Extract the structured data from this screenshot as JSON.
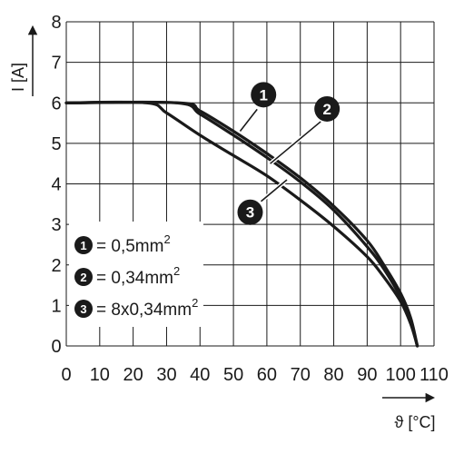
{
  "chart_data": {
    "type": "line",
    "xlabel": "ϑ [°C]",
    "ylabel": "I [A]",
    "xlim": [
      0,
      110
    ],
    "ylim": [
      0,
      8
    ],
    "x_ticks": [
      "0",
      "10",
      "20",
      "30",
      "40",
      "50",
      "60",
      "70",
      "80",
      "90",
      "100",
      "110"
    ],
    "y_ticks": [
      "0",
      "1",
      "2",
      "3",
      "4",
      "5",
      "6",
      "7",
      "8"
    ],
    "grid": true,
    "series": [
      {
        "name": "1",
        "x": [
          0,
          34,
          40,
          50,
          60,
          70,
          80,
          90,
          95,
          100,
          103,
          105
        ],
        "y": [
          6,
          6,
          5.8,
          5.3,
          4.75,
          4.15,
          3.45,
          2.6,
          2.0,
          1.3,
          0.7,
          0
        ]
      },
      {
        "name": "2",
        "x": [
          0,
          33,
          40,
          50,
          60,
          70,
          80,
          90,
          95,
          100,
          103,
          105
        ],
        "y": [
          6,
          6,
          5.72,
          5.2,
          4.65,
          4.05,
          3.35,
          2.45,
          1.9,
          1.2,
          0.6,
          0
        ]
      },
      {
        "name": "3",
        "x": [
          0,
          24,
          30,
          40,
          50,
          60,
          70,
          80,
          90,
          95,
          100,
          103,
          105
        ],
        "y": [
          6,
          6,
          5.75,
          5.2,
          4.7,
          4.2,
          3.6,
          2.95,
          2.2,
          1.7,
          1.1,
          0.55,
          0
        ]
      }
    ],
    "markers": [
      {
        "label": "1",
        "x": 59,
        "y": 6.2
      },
      {
        "label": "2",
        "x": 78,
        "y": 5.85
      },
      {
        "label": "3",
        "x": 55,
        "y": 3.3
      }
    ],
    "legend": {
      "placement": "bottom-left",
      "entries": [
        {
          "label": "1",
          "text": "= 0,5mm",
          "sup": "2"
        },
        {
          "label": "2",
          "text": "= 0,34mm",
          "sup": "2"
        },
        {
          "label": "3",
          "text": "= 8x0,34mm",
          "sup": "2"
        }
      ]
    }
  }
}
